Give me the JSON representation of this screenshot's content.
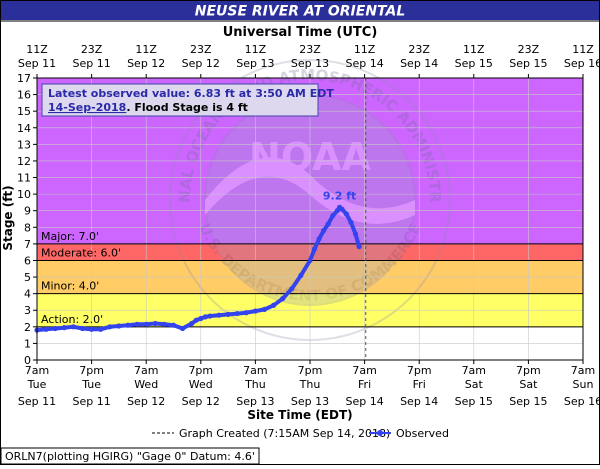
{
  "header": {
    "title": "NEUSE RIVER AT ORIENTAL",
    "utc_axis_title": "Universal Time (UTC)",
    "site_axis_title": "Site Time (EDT)",
    "y_axis_title": "Stage (ft)"
  },
  "annotation": {
    "line1": "Latest observed value: 6.83  ft at 3:50 AM EDT",
    "line2_date": "14-Sep-2018",
    "line2_rest": ". Flood Stage is 4 ft"
  },
  "peak_label": "9.2 ft",
  "legend": {
    "created": "Graph Created (7:15AM Sep 14, 2018)",
    "observed": "Observed"
  },
  "footer": "ORLN7(plotting HGIRG) \"Gage 0\" Datum: 4.6'",
  "watermark": {
    "top_text": "NATIONAL OCEANIC AND ATMOSPHERIC ADMINISTRATION",
    "bottom_text": "U.S. DEPARTMENT OF COMMERCE",
    "center": "NOAA"
  },
  "colors": {
    "title_bg": "#2a2f9a",
    "major": "#cc66ff",
    "moderate": "#ff6666",
    "minor": "#ffcc66",
    "action": "#ffff66",
    "normal": "#ffffff",
    "series": "#3344ee",
    "peak_text": "#3344ee",
    "annotation_text": "#2a2aa8"
  },
  "chart_data": {
    "type": "line",
    "title": "NEUSE RIVER AT ORIENTAL",
    "xlabel": "Site Time (EDT)",
    "ylabel": "Stage (ft)",
    "ylim": [
      0,
      17
    ],
    "yticks": [
      0,
      1,
      2,
      3,
      4,
      5,
      6,
      7,
      8,
      9,
      10,
      11,
      12,
      13,
      14,
      15,
      16,
      17
    ],
    "x_range_hours": [
      0,
      120
    ],
    "bottom_ticks": [
      {
        "h": 0,
        "time": "7am",
        "day": "Tue",
        "date": "Sep 11"
      },
      {
        "h": 12,
        "time": "7pm",
        "day": "Tue",
        "date": "Sep 11"
      },
      {
        "h": 24,
        "time": "7am",
        "day": "Wed",
        "date": "Sep 12"
      },
      {
        "h": 36,
        "time": "7pm",
        "day": "Wed",
        "date": "Sep 12"
      },
      {
        "h": 48,
        "time": "7am",
        "day": "Thu",
        "date": "Sep 13"
      },
      {
        "h": 60,
        "time": "7pm",
        "day": "Thu",
        "date": "Sep 13"
      },
      {
        "h": 72,
        "time": "7am",
        "day": "Fri",
        "date": "Sep 14"
      },
      {
        "h": 84,
        "time": "7pm",
        "day": "Fri",
        "date": "Sep 14"
      },
      {
        "h": 96,
        "time": "7am",
        "day": "Sat",
        "date": "Sep 15"
      },
      {
        "h": 108,
        "time": "7pm",
        "day": "Sat",
        "date": "Sep 15"
      },
      {
        "h": 120,
        "time": "7am",
        "day": "Sun",
        "date": "Sep 16"
      }
    ],
    "top_ticks": [
      {
        "h": 0,
        "time": "11Z",
        "date": "Sep 11"
      },
      {
        "h": 12,
        "time": "23Z",
        "date": "Sep 11"
      },
      {
        "h": 24,
        "time": "11Z",
        "date": "Sep 12"
      },
      {
        "h": 36,
        "time": "23Z",
        "date": "Sep 12"
      },
      {
        "h": 48,
        "time": "11Z",
        "date": "Sep 13"
      },
      {
        "h": 60,
        "time": "23Z",
        "date": "Sep 13"
      },
      {
        "h": 72,
        "time": "11Z",
        "date": "Sep 14"
      },
      {
        "h": 84,
        "time": "23Z",
        "date": "Sep 14"
      },
      {
        "h": 96,
        "time": "11Z",
        "date": "Sep 15"
      },
      {
        "h": 108,
        "time": "23Z",
        "date": "Sep 15"
      },
      {
        "h": 120,
        "time": "11Z",
        "date": "Sep 16"
      }
    ],
    "flood_categories": [
      {
        "name": "Major",
        "label": "Major: 7.0'",
        "from": 7.0,
        "to": 17,
        "color": "#cc66ff"
      },
      {
        "name": "Moderate",
        "label": "Moderate: 6.0'",
        "from": 6.0,
        "to": 7.0,
        "color": "#ff6666"
      },
      {
        "name": "Minor",
        "label": "Minor: 4.0'",
        "from": 4.0,
        "to": 6.0,
        "color": "#ffcc66"
      },
      {
        "name": "Action",
        "label": "Action: 2.0'",
        "from": 2.0,
        "to": 4.0,
        "color": "#ffff66"
      }
    ],
    "graph_created_h": 72.25,
    "flood_stage": 4,
    "latest_value": 6.83,
    "peak": {
      "h": 66.5,
      "value": 9.2
    },
    "series": [
      {
        "name": "Observed",
        "x": [
          0,
          2,
          4,
          6,
          8,
          10,
          12,
          14,
          16,
          18,
          20,
          22,
          24,
          26,
          28,
          30,
          32,
          34,
          35,
          36,
          37,
          38,
          40,
          42,
          44,
          46,
          48,
          50,
          52,
          54,
          56,
          58,
          60,
          61,
          62,
          63,
          64,
          65,
          66,
          66.5,
          67,
          68,
          69,
          70,
          70.8
        ],
        "y": [
          1.8,
          1.85,
          1.9,
          1.95,
          2.0,
          1.9,
          1.85,
          1.85,
          2.0,
          2.05,
          2.1,
          2.15,
          2.15,
          2.2,
          2.15,
          2.1,
          1.9,
          2.2,
          2.4,
          2.5,
          2.6,
          2.65,
          2.7,
          2.75,
          2.8,
          2.85,
          2.95,
          3.05,
          3.3,
          3.7,
          4.3,
          5.1,
          6.0,
          6.7,
          7.3,
          7.8,
          8.2,
          8.7,
          9.0,
          9.2,
          9.1,
          8.8,
          8.3,
          7.6,
          6.83
        ]
      }
    ]
  }
}
